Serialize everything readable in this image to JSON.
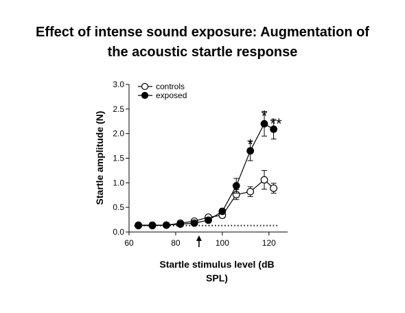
{
  "title": {
    "line1": "Effect of intense sound exposure: Augmentation of",
    "line2": "the acoustic startle response"
  },
  "chart_data": {
    "type": "line",
    "xlabel_line1": "Startle stimulus level (dB",
    "xlabel_line2": "SPL)",
    "ylabel": "Startle amplitude (N)",
    "xlim": [
      60,
      128
    ],
    "ylim": [
      0,
      3.0
    ],
    "xticks": [
      60,
      80,
      100,
      120
    ],
    "yticks": [
      "0.0",
      "0.5",
      "1.0",
      "1.5",
      "2.0",
      "2.5",
      "3.0"
    ],
    "grid": false,
    "legend": "top-left",
    "baseline": 0.13,
    "arrow_at_x": 90,
    "series": [
      {
        "name": "controls",
        "marker": "open-circle",
        "x": [
          64,
          70,
          76,
          82,
          88,
          94,
          100,
          106,
          112,
          118,
          122
        ],
        "y": [
          0.14,
          0.14,
          0.14,
          0.18,
          0.22,
          0.3,
          0.34,
          0.76,
          0.82,
          1.06,
          0.89
        ],
        "err": [
          0.03,
          0.03,
          0.03,
          0.03,
          0.04,
          0.05,
          0.05,
          0.1,
          0.1,
          0.19,
          0.1
        ]
      },
      {
        "name": "exposed",
        "marker": "filled-circle",
        "x": [
          64,
          70,
          76,
          82,
          88,
          94,
          100,
          106,
          112,
          118,
          122
        ],
        "y": [
          0.13,
          0.13,
          0.14,
          0.16,
          0.18,
          0.24,
          0.42,
          0.94,
          1.65,
          2.2,
          2.09
        ],
        "err": [
          0.02,
          0.02,
          0.02,
          0.02,
          0.03,
          0.05,
          0.05,
          0.15,
          0.2,
          0.25,
          0.2
        ]
      }
    ],
    "annotations": [
      {
        "text": "*",
        "x": 112,
        "y": 1.87
      },
      {
        "text": "*",
        "x": 118,
        "y": 2.45
      },
      {
        "text": "**",
        "x": 123,
        "y": 2.29
      }
    ]
  }
}
